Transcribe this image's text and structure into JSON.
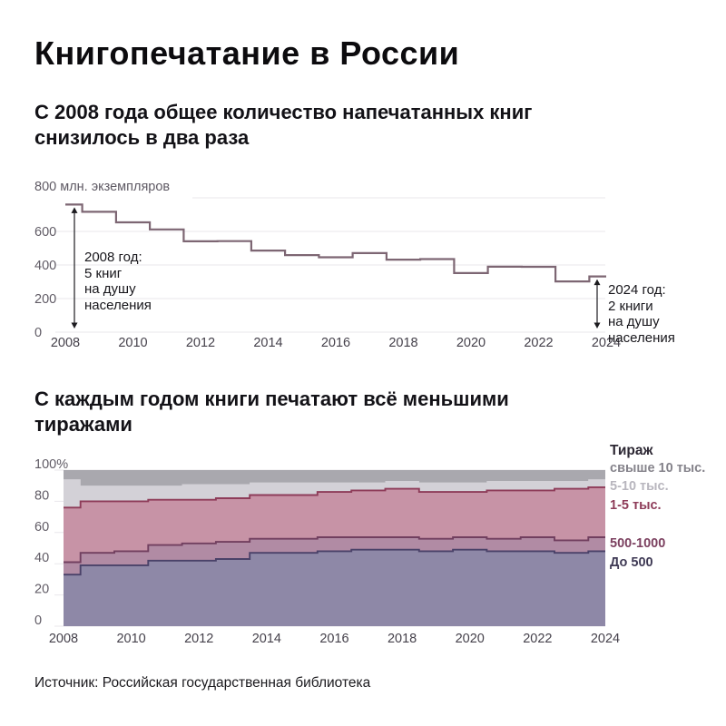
{
  "page": {
    "title": "Книгопечатание в России",
    "source": "Источник: Российская государственная библиотека"
  },
  "chart_data": [
    {
      "type": "line",
      "step": true,
      "title": "С 2008 года общее количество напечатанных книг\nснизилось в два раза",
      "ylabel": "800 млн. экземпляров",
      "unit": "млн. экземпляров",
      "x": [
        2008,
        2009,
        2010,
        2011,
        2012,
        2013,
        2014,
        2015,
        2016,
        2017,
        2018,
        2019,
        2020,
        2021,
        2022,
        2023,
        2024
      ],
      "values": [
        760,
        717,
        654,
        612,
        541,
        542,
        486,
        459,
        446,
        471,
        432,
        435,
        352,
        390,
        389,
        302,
        332
      ],
      "ylim": [
        0,
        800
      ],
      "yticks": [
        0,
        200,
        400,
        600,
        800
      ],
      "xticks": [
        2008,
        2010,
        2012,
        2014,
        2016,
        2018,
        2020,
        2022,
        2024
      ],
      "grid": true,
      "line_color": "#7d6673",
      "annotations": [
        {
          "year": 2008,
          "text": "2008 год:\n5 книг\nна душу\nнаселения"
        },
        {
          "year": 2024,
          "text": "2024 год:\n2 книги\nна душу\nнаселения"
        }
      ]
    },
    {
      "type": "area",
      "stacked": true,
      "step": true,
      "title": "С каждым годом книги печатают всё меньшими\nтиражами",
      "unit": "%",
      "x": [
        2008,
        2009,
        2010,
        2011,
        2012,
        2013,
        2014,
        2015,
        2016,
        2017,
        2018,
        2019,
        2020,
        2021,
        2022,
        2023,
        2024
      ],
      "series": [
        {
          "name": "До 500",
          "values": [
            33,
            39,
            39,
            42,
            42,
            43,
            47,
            47,
            48,
            49,
            49,
            48,
            49,
            48,
            48,
            47,
            48
          ],
          "fill": "#8e88a7",
          "line": "#4a4269"
        },
        {
          "name": "500-1000",
          "values": [
            8,
            8,
            9,
            10,
            11,
            11,
            9,
            9,
            9,
            8,
            8,
            8,
            8,
            8,
            9,
            8,
            9
          ],
          "fill": "#b18ba4",
          "line": "#713f5f"
        },
        {
          "name": "1-5 тыс.",
          "values": [
            35,
            33,
            32,
            29,
            28,
            28,
            28,
            28,
            29,
            30,
            31,
            30,
            29,
            31,
            30,
            33,
            32
          ],
          "fill": "#c793a6",
          "line": "#8e3c59"
        },
        {
          "name": "5-10 тыс.",
          "values": [
            18,
            10,
            10,
            9,
            10,
            9,
            8,
            8,
            6,
            5,
            5,
            6,
            6,
            6,
            6,
            5,
            5
          ],
          "fill": "#d3d1d7",
          "line": null
        },
        {
          "name": "свыше 10 тыс.",
          "values": [
            6,
            10,
            10,
            10,
            9,
            9,
            8,
            8,
            8,
            8,
            7,
            8,
            8,
            7,
            7,
            7,
            6
          ],
          "fill": "#a9a8ae",
          "line": null
        }
      ],
      "ylim": [
        0,
        100
      ],
      "yticks": [
        0,
        20,
        40,
        60,
        80,
        100
      ],
      "ytick_labels": [
        "0",
        "20",
        "40",
        "60",
        "80",
        "100%"
      ],
      "xticks": [
        2008,
        2010,
        2012,
        2014,
        2016,
        2018,
        2020,
        2022,
        2024
      ],
      "grid": true,
      "legend": {
        "title": "Тираж",
        "position": "right",
        "entries": [
          {
            "label": "свыше 10 тыс.",
            "color": "#85838b"
          },
          {
            "label": "5-10 тыс.",
            "color": "#b8b6be"
          },
          {
            "label": "1-5 тыс.",
            "color": "#8e3c59"
          },
          {
            "label": "500-1000",
            "color": "#7c4160"
          },
          {
            "label": "До 500",
            "color": "#3f3a55"
          }
        ]
      }
    }
  ],
  "style": {
    "gridline_color": "#e9e7eb",
    "tick_color_y": "#605b65",
    "tick_color_x": "#45414b",
    "arrow_color": "#1c1b1f",
    "background": "#ffffff"
  }
}
